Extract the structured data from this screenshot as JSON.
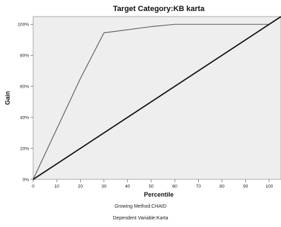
{
  "chart_data": {
    "type": "line",
    "title": "Target Category:KB karta",
    "xlabel": "Percentile",
    "ylabel": "Gain",
    "xlim": [
      0,
      105
    ],
    "ylim": [
      0,
      105
    ],
    "x_ticks": [
      0,
      10,
      20,
      30,
      40,
      50,
      60,
      70,
      80,
      90,
      100
    ],
    "y_ticks": [
      0,
      20,
      40,
      60,
      80,
      100
    ],
    "y_tick_labels": [
      "0%",
      "20%",
      "40%",
      "60%",
      "80%",
      "100%"
    ],
    "grid": false,
    "series": [
      {
        "x": [
          0,
          20,
          30,
          50,
          60,
          100
        ],
        "y": [
          0,
          65,
          94.5,
          98.5,
          100,
          100
        ],
        "color": "#555555"
      },
      {
        "x": [
          0,
          105
        ],
        "y": [
          0,
          105
        ],
        "color": "#111111"
      }
    ],
    "colors": {
      "plot_background": "#eeeeee",
      "axis": "#555555"
    }
  },
  "footnotes": {
    "growing_method": "Growing Method:CHAID",
    "dependent_variable": "Dependent Variable:Karta"
  }
}
